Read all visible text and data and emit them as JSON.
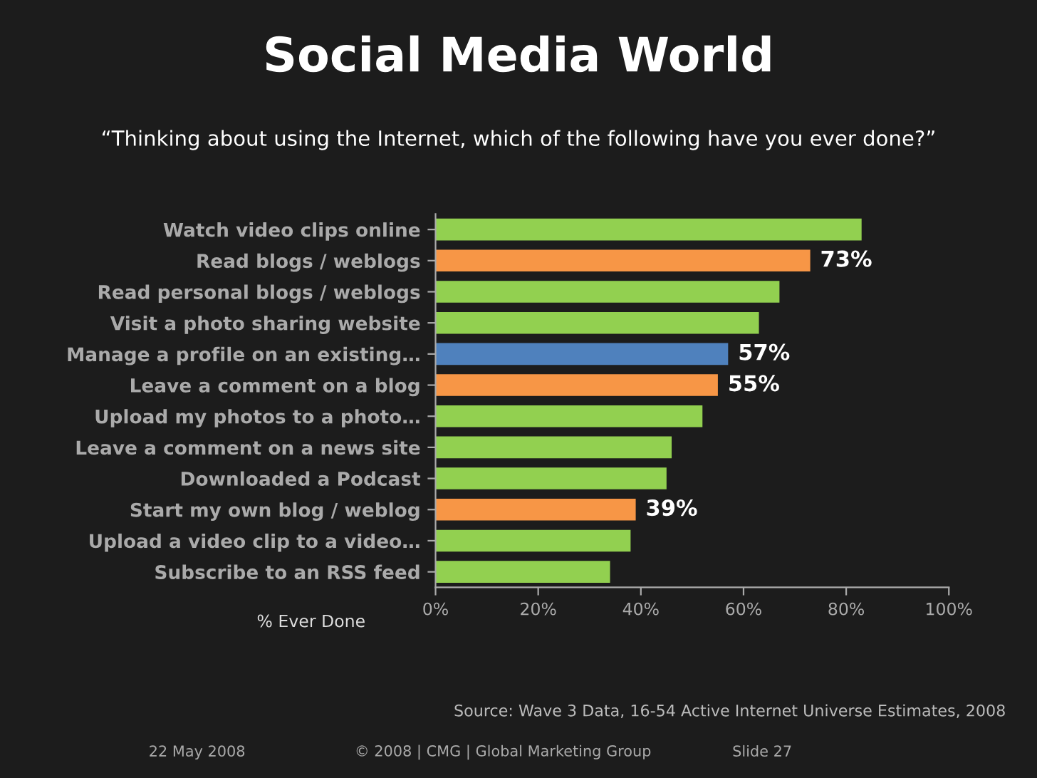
{
  "chart_data": {
    "type": "bar",
    "orientation": "horizontal",
    "title": "Social Media World",
    "subtitle": "“Thinking about using the Internet, which of the following have you ever done?”",
    "xlabel": "% Ever Done",
    "categories": [
      "Watch video clips online",
      "Read blogs / weblogs",
      "Read personal blogs / weblogs",
      "Visit a photo sharing website",
      "Manage a profile on an existing…",
      "Leave a comment on a blog",
      "Upload my photos to a photo…",
      "Leave a comment on a news site",
      "Downloaded a Podcast",
      "Start my own blog / weblog",
      "Upload a video clip to a video…",
      "Subscribe to an RSS feed"
    ],
    "values": [
      83,
      73,
      67,
      63,
      57,
      55,
      52,
      46,
      45,
      39,
      38,
      34
    ],
    "colors": [
      "#92d050",
      "#f79646",
      "#92d050",
      "#92d050",
      "#4f81bd",
      "#f79646",
      "#92d050",
      "#92d050",
      "#92d050",
      "#f79646",
      "#92d050",
      "#92d050"
    ],
    "value_labels": [
      null,
      "73%",
      null,
      null,
      "57%",
      "55%",
      null,
      null,
      null,
      "39%",
      null,
      null
    ],
    "xlim": [
      0,
      100
    ],
    "xticks": [
      {
        "value": 0,
        "label": "0%"
      },
      {
        "value": 20,
        "label": "20%"
      },
      {
        "value": 40,
        "label": "40%"
      },
      {
        "value": 60,
        "label": "60%"
      },
      {
        "value": 80,
        "label": "80%"
      },
      {
        "value": 100,
        "label": "100%"
      }
    ],
    "grid": false,
    "legend": false,
    "annotations": [
      "Source: Wave 3 Data, 16-54 Active Internet Universe Estimates, 2008",
      "22 May 2008",
      "© 2008 | CMG | Global Marketing Group",
      "Slide 27"
    ]
  }
}
